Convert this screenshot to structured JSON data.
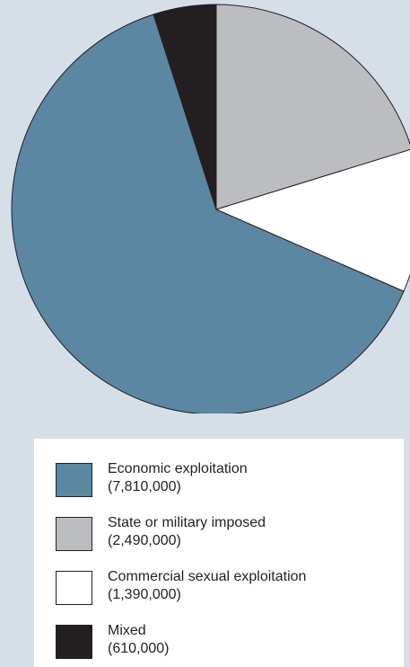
{
  "chart_data": {
    "type": "pie",
    "start_angle_deg": 0,
    "direction": "clockwise",
    "slices": [
      {
        "label": "State or military imposed",
        "value_label": "(2,490,000)",
        "value": 2490000,
        "color": "#bcbdc0"
      },
      {
        "label": "Commercial sexual exploitation",
        "value_label": "(1,390,000)",
        "value": 1390000,
        "color": "#ffffff"
      },
      {
        "label": "Economic exploitation",
        "value_label": "(7,810,000)",
        "value": 7810000,
        "color": "#5b87a3"
      },
      {
        "label": "Mixed",
        "value_label": "(610,000)",
        "value": 610000,
        "color": "#231f20"
      }
    ],
    "legend": {
      "placement": "bottom",
      "items": [
        {
          "label": "Economic exploitation",
          "value_label": "(7,810,000)",
          "color": "#5b87a3"
        },
        {
          "label": "State or military imposed",
          "value_label": "(2,490,000)",
          "color": "#bcbdc0"
        },
        {
          "label": "Commercial sexual exploitation",
          "value_label": "(1,390,000)",
          "color": "#ffffff"
        },
        {
          "label": "Mixed",
          "value_label": "(610,000)",
          "color": "#231f20"
        }
      ]
    }
  }
}
